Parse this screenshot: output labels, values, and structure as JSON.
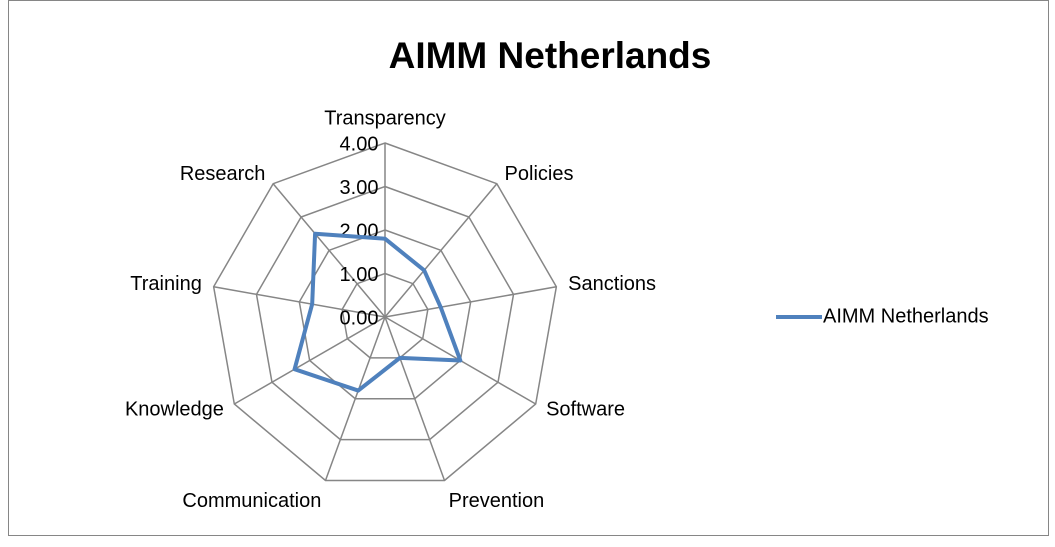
{
  "chart_data": {
    "type": "radar",
    "title": "AIMM Netherlands",
    "categories": [
      "Transparency",
      "Policies",
      "Sanctions",
      "Software",
      "Prevention",
      "Communication",
      "Knowledge",
      "Training",
      "Research"
    ],
    "series": [
      {
        "name": "AIMM Netherlands",
        "color": "#4f81bd",
        "values": [
          1.8,
          1.4,
          1.3,
          2.0,
          1.0,
          1.8,
          2.4,
          1.7,
          2.5
        ]
      }
    ],
    "ylim": [
      0,
      4
    ],
    "yticks": [
      {
        "value": 0,
        "label": "0.00"
      },
      {
        "value": 1,
        "label": "1.00"
      },
      {
        "value": 2,
        "label": "2.00"
      },
      {
        "value": 3,
        "label": "3.00"
      },
      {
        "value": 4,
        "label": "4.00"
      }
    ],
    "grid": true,
    "legend": "right"
  }
}
